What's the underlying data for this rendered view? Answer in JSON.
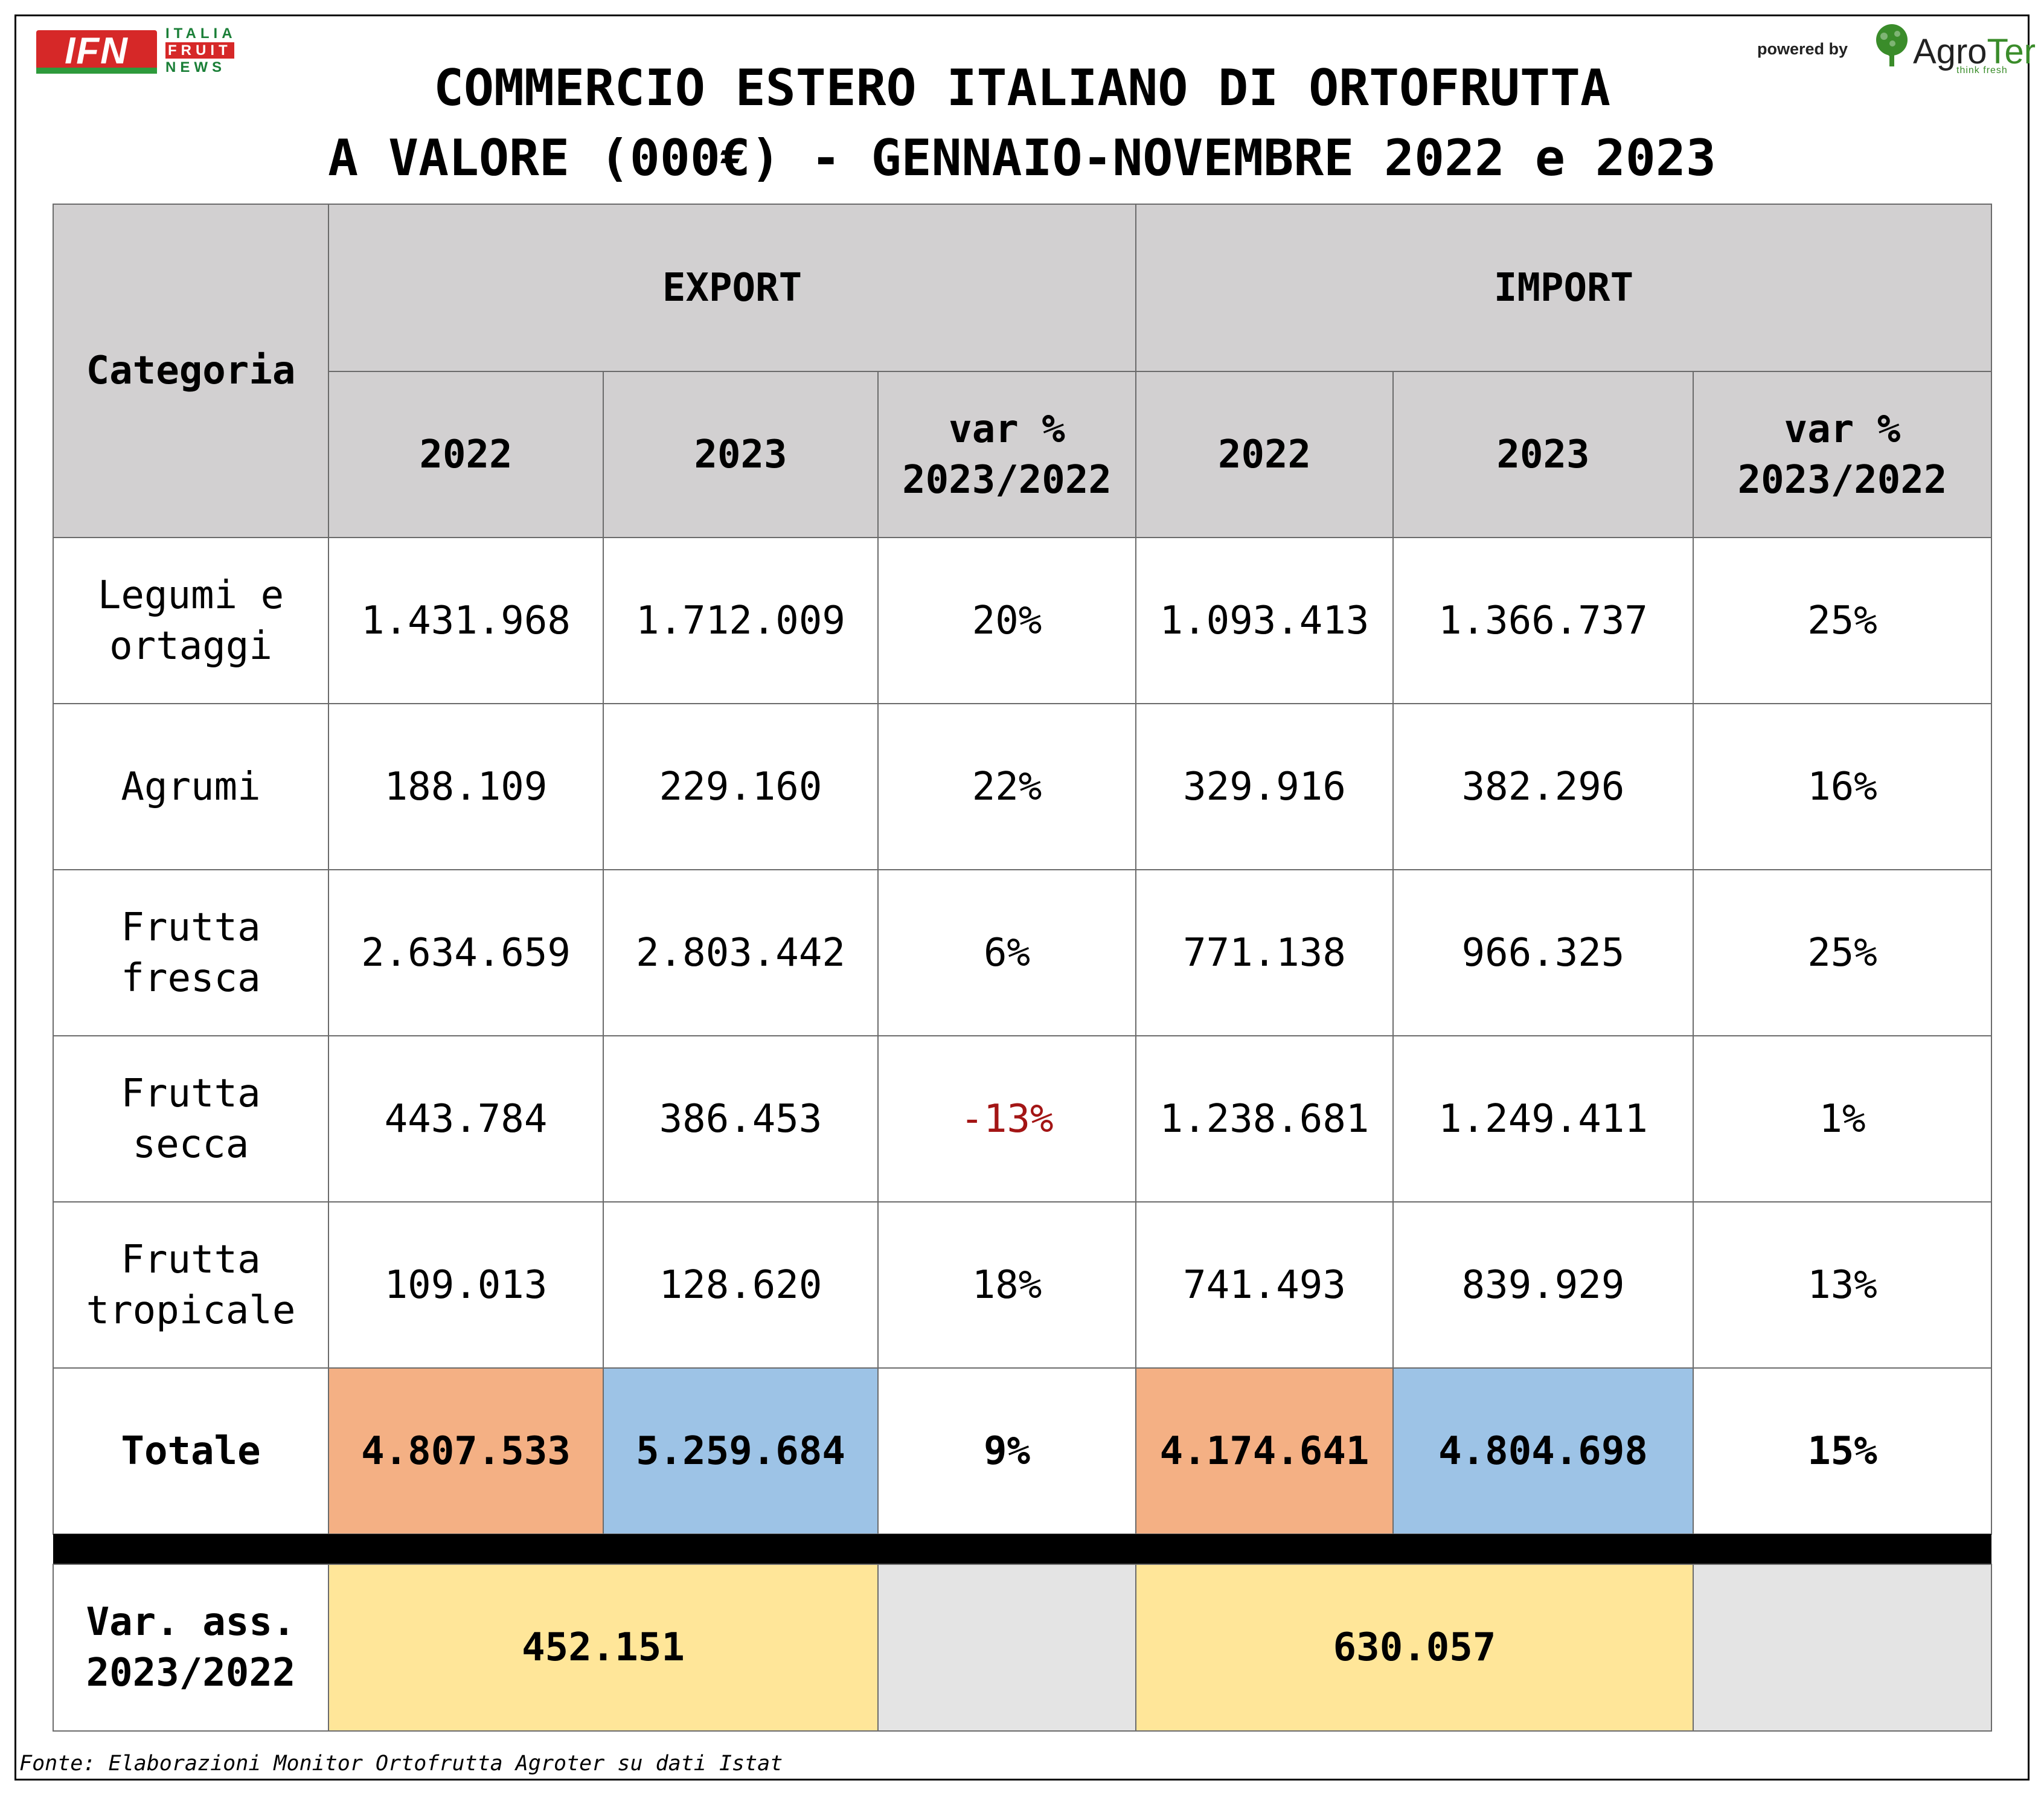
{
  "logo_left": {
    "name": "IFN",
    "words": [
      "ITALIA",
      "FRUIT",
      "NEWS"
    ]
  },
  "logo_right": {
    "powered": "powered by",
    "brand_a": "Agro",
    "brand_b": "Ter",
    "tagline": "think fresh"
  },
  "title_line1": "COMMERCIO ESTERO ITALIANO DI ORTOFRUTTA",
  "title_line2": "A VALORE (000€) - GENNAIO-NOVEMBRE 2022 e 2023",
  "headers": {
    "categoria": "Categoria",
    "export": "EXPORT",
    "import": "IMPORT",
    "y2022": "2022",
    "y2023": "2023",
    "var_line1": "var %",
    "var_line2": "2023/2022"
  },
  "chart_data": {
    "type": "table",
    "title": "COMMERCIO ESTERO ITALIANO DI ORTOFRUTTA A VALORE (000€) - GENNAIO-NOVEMBRE 2022 e 2023",
    "columns": [
      "Categoria",
      "EXPORT 2022",
      "EXPORT 2023",
      "EXPORT var % 2023/2022",
      "IMPORT 2022",
      "IMPORT 2023",
      "IMPORT var % 2023/2022"
    ],
    "rows": [
      {
        "categoria_l1": "Legumi e",
        "categoria_l2": "ortaggi",
        "exp2022": "1.431.968",
        "exp2023": "1.712.009",
        "expvar": "20%",
        "imp2022": "1.093.413",
        "imp2023": "1.366.737",
        "impvar": "25%"
      },
      {
        "categoria_l1": "Agrumi",
        "categoria_l2": "",
        "exp2022": "188.109",
        "exp2023": "229.160",
        "expvar": "22%",
        "imp2022": "329.916",
        "imp2023": "382.296",
        "impvar": "16%"
      },
      {
        "categoria_l1": "Frutta",
        "categoria_l2": "fresca",
        "exp2022": "2.634.659",
        "exp2023": "2.803.442",
        "expvar": "6%",
        "imp2022": "771.138",
        "imp2023": "966.325",
        "impvar": "25%"
      },
      {
        "categoria_l1": "Frutta",
        "categoria_l2": "secca",
        "exp2022": "443.784",
        "exp2023": "386.453",
        "expvar": "-13%",
        "imp2022": "1.238.681",
        "imp2023": "1.249.411",
        "impvar": "1%"
      },
      {
        "categoria_l1": "Frutta",
        "categoria_l2": "tropicale",
        "exp2022": "109.013",
        "exp2023": "128.620",
        "expvar": "18%",
        "imp2022": "741.493",
        "imp2023": "839.929",
        "impvar": "13%"
      }
    ],
    "total": {
      "label": "Totale",
      "exp2022": "4.807.533",
      "exp2023": "5.259.684",
      "expvar": "9%",
      "imp2022": "4.174.641",
      "imp2023": "4.804.698",
      "impvar": "15%"
    },
    "var_ass": {
      "label_l1": "Var. ass.",
      "label_l2": "2023/2022",
      "export": "452.151",
      "import": "630.057"
    }
  },
  "colors": {
    "header_gray": "#d2d0d1",
    "orange": "#f4b084",
    "blue": "#9dc3e6",
    "yellow": "#ffe699",
    "negative": "#a31515"
  },
  "footer": "Fonte: Elaborazioni Monitor Ortofrutta Agroter su dati Istat"
}
